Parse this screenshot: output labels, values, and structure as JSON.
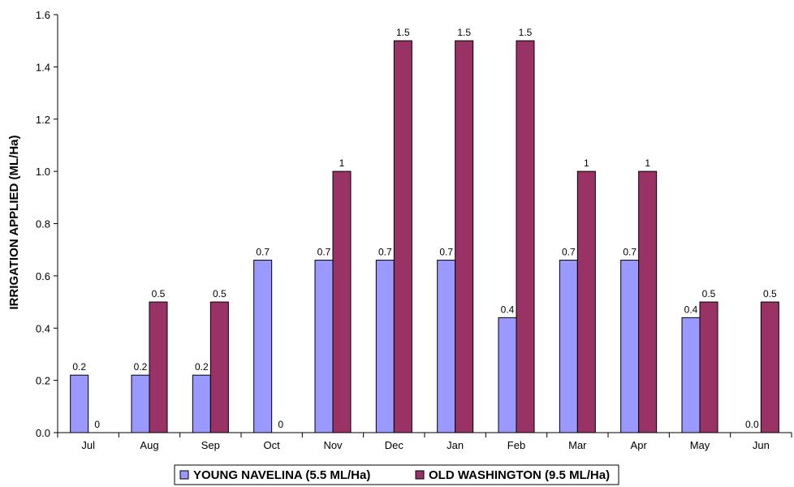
{
  "chart_data": {
    "type": "bar",
    "title": "",
    "xlabel": "",
    "ylabel": "IRRIGATION APPLIED (ML/Ha)",
    "ylim": [
      0,
      1.6
    ],
    "yticks": [
      "0.0",
      "0.2",
      "0.4",
      "0.6",
      "0.8",
      "1.0",
      "1.2",
      "1.4",
      "1.6"
    ],
    "grid": false,
    "legend_position": "bottom",
    "categories": [
      "Jul",
      "Aug",
      "Sep",
      "Oct",
      "Nov",
      "Dec",
      "Jan",
      "Feb",
      "Mar",
      "Apr",
      "May",
      "Jun"
    ],
    "series": [
      {
        "name": "YOUNG NAVELINA (5.5 ML/Ha)",
        "color": "#9999ff",
        "values": [
          0.22,
          0.22,
          0.22,
          0.66,
          0.66,
          0.66,
          0.66,
          0.44,
          0.66,
          0.66,
          0.44,
          0.0
        ],
        "labels": [
          "0.2",
          "0.2",
          "0.2",
          "0.7",
          "0.7",
          "0.7",
          "0.7",
          "0.4",
          "0.7",
          "0.7",
          "0.4",
          "0.0"
        ]
      },
      {
        "name": "OLD WASHINGTON (9.5 ML/Ha)",
        "color": "#993366",
        "values": [
          0,
          0.5,
          0.5,
          0,
          1,
          1.5,
          1.5,
          1.5,
          1,
          1,
          0.5,
          0.5
        ],
        "labels": [
          "0",
          "0.5",
          "0.5",
          "0",
          "1",
          "1.5",
          "1.5",
          "1.5",
          "1",
          "1",
          "0.5",
          "0.5"
        ]
      }
    ]
  }
}
